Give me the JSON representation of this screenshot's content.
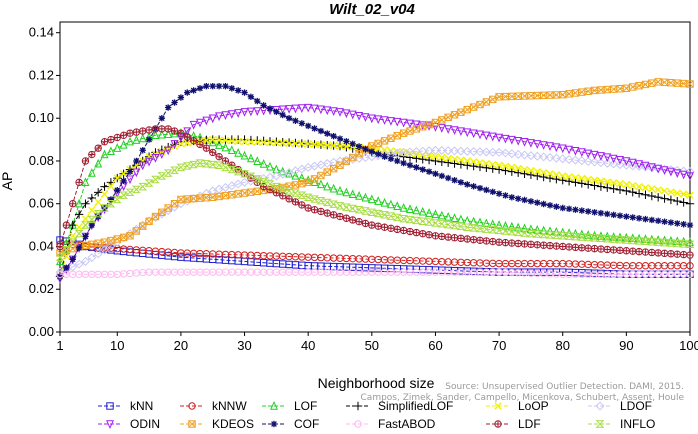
{
  "chart_data": {
    "type": "line",
    "title": "Wilt_02_v04",
    "xlabel": "Neighborhood size",
    "ylabel": "AP",
    "xlim": [
      1,
      100
    ],
    "ylim": [
      0.0,
      0.145
    ],
    "xticks": [
      "1",
      "10",
      "20",
      "30",
      "40",
      "50",
      "60",
      "70",
      "80",
      "90",
      "100"
    ],
    "yticks": [
      "0.00",
      "0.02",
      "0.04",
      "0.06",
      "0.08",
      "0.10",
      "0.12",
      "0.14"
    ],
    "watermark_line1": "Source: Unsupervised Outlier Detection. DAMI, 2015.",
    "watermark_line2": "Campos, Zimek, Sander, Campello, Micenkova, Schubert, Assent, Houle",
    "series": [
      {
        "name": "kNN",
        "color": "#1f1fd0",
        "marker": "square",
        "points": [
          [
            1,
            0.043
          ],
          [
            3,
            0.042
          ],
          [
            5,
            0.04
          ],
          [
            10,
            0.038
          ],
          [
            20,
            0.035
          ],
          [
            30,
            0.033
          ],
          [
            40,
            0.031
          ],
          [
            50,
            0.03
          ],
          [
            60,
            0.029
          ],
          [
            70,
            0.028
          ],
          [
            80,
            0.028
          ],
          [
            90,
            0.027
          ],
          [
            100,
            0.027
          ]
        ]
      },
      {
        "name": "kNNW",
        "color": "#d02020",
        "marker": "circle",
        "points": [
          [
            1,
            0.041
          ],
          [
            3,
            0.041
          ],
          [
            5,
            0.04
          ],
          [
            10,
            0.039
          ],
          [
            20,
            0.037
          ],
          [
            30,
            0.036
          ],
          [
            40,
            0.035
          ],
          [
            50,
            0.034
          ],
          [
            60,
            0.033
          ],
          [
            70,
            0.032
          ],
          [
            80,
            0.032
          ],
          [
            90,
            0.031
          ],
          [
            100,
            0.031
          ]
        ]
      },
      {
        "name": "LOF",
        "color": "#20d020",
        "marker": "triangle",
        "points": [
          [
            1,
            0.033
          ],
          [
            3,
            0.05
          ],
          [
            5,
            0.07
          ],
          [
            8,
            0.083
          ],
          [
            12,
            0.089
          ],
          [
            16,
            0.092
          ],
          [
            20,
            0.093
          ],
          [
            23,
            0.091
          ],
          [
            28,
            0.085
          ],
          [
            35,
            0.076
          ],
          [
            45,
            0.066
          ],
          [
            55,
            0.058
          ],
          [
            65,
            0.052
          ],
          [
            75,
            0.048
          ],
          [
            85,
            0.045
          ],
          [
            100,
            0.042
          ]
        ]
      },
      {
        "name": "SimplifiedLOF",
        "color": "#000000",
        "marker": "plus",
        "points": [
          [
            1,
            0.026
          ],
          [
            3,
            0.05
          ],
          [
            5,
            0.06
          ],
          [
            8,
            0.068
          ],
          [
            12,
            0.076
          ],
          [
            16,
            0.084
          ],
          [
            20,
            0.089
          ],
          [
            25,
            0.09
          ],
          [
            30,
            0.09
          ],
          [
            35,
            0.089
          ],
          [
            40,
            0.088
          ],
          [
            45,
            0.087
          ],
          [
            50,
            0.084
          ],
          [
            60,
            0.08
          ],
          [
            70,
            0.076
          ],
          [
            80,
            0.071
          ],
          [
            90,
            0.066
          ],
          [
            100,
            0.06
          ]
        ]
      },
      {
        "name": "LoOP",
        "color": "#f2f200",
        "marker": "x",
        "points": [
          [
            1,
            0.026
          ],
          [
            3,
            0.045
          ],
          [
            6,
            0.057
          ],
          [
            10,
            0.072
          ],
          [
            15,
            0.082
          ],
          [
            20,
            0.088
          ],
          [
            25,
            0.09
          ],
          [
            30,
            0.089
          ],
          [
            40,
            0.088
          ],
          [
            50,
            0.086
          ],
          [
            60,
            0.082
          ],
          [
            70,
            0.078
          ],
          [
            80,
            0.073
          ],
          [
            90,
            0.069
          ],
          [
            100,
            0.064
          ]
        ]
      },
      {
        "name": "LDOF",
        "color": "#c8c8f4",
        "marker": "diamond",
        "points": [
          [
            1,
            0.028
          ],
          [
            5,
            0.033
          ],
          [
            10,
            0.042
          ],
          [
            15,
            0.052
          ],
          [
            20,
            0.06
          ],
          [
            25,
            0.066
          ],
          [
            30,
            0.07
          ],
          [
            35,
            0.073
          ],
          [
            40,
            0.077
          ],
          [
            45,
            0.08
          ],
          [
            50,
            0.082
          ],
          [
            55,
            0.084
          ],
          [
            60,
            0.085
          ],
          [
            70,
            0.084
          ],
          [
            80,
            0.081
          ],
          [
            90,
            0.078
          ],
          [
            100,
            0.075
          ]
        ]
      },
      {
        "name": "ODIN",
        "color": "#a020f0",
        "marker": "tri-down",
        "points": [
          [
            1,
            0.025
          ],
          [
            3,
            0.034
          ],
          [
            6,
            0.05
          ],
          [
            10,
            0.065
          ],
          [
            14,
            0.078
          ],
          [
            18,
            0.085
          ],
          [
            22,
            0.097
          ],
          [
            26,
            0.101
          ],
          [
            30,
            0.103
          ],
          [
            35,
            0.104
          ],
          [
            40,
            0.105
          ],
          [
            45,
            0.103
          ],
          [
            50,
            0.1
          ],
          [
            60,
            0.096
          ],
          [
            70,
            0.091
          ],
          [
            80,
            0.086
          ],
          [
            90,
            0.08
          ],
          [
            100,
            0.073
          ]
        ]
      },
      {
        "name": "KDEOS",
        "color": "#f0a020",
        "marker": "square-x",
        "points": [
          [
            1,
            0.037
          ],
          [
            4,
            0.04
          ],
          [
            8,
            0.042
          ],
          [
            12,
            0.045
          ],
          [
            16,
            0.054
          ],
          [
            20,
            0.062
          ],
          [
            25,
            0.063
          ],
          [
            30,
            0.065
          ],
          [
            35,
            0.067
          ],
          [
            40,
            0.07
          ],
          [
            45,
            0.078
          ],
          [
            50,
            0.087
          ],
          [
            55,
            0.093
          ],
          [
            60,
            0.098
          ],
          [
            65,
            0.104
          ],
          [
            70,
            0.11
          ],
          [
            80,
            0.111
          ],
          [
            85,
            0.113
          ],
          [
            90,
            0.114
          ],
          [
            95,
            0.117
          ],
          [
            100,
            0.116
          ]
        ]
      },
      {
        "name": "COF",
        "color": "#10106e",
        "marker": "star",
        "points": [
          [
            1,
            0.026
          ],
          [
            3,
            0.034
          ],
          [
            6,
            0.05
          ],
          [
            9,
            0.062
          ],
          [
            12,
            0.075
          ],
          [
            15,
            0.09
          ],
          [
            18,
            0.105
          ],
          [
            21,
            0.112
          ],
          [
            24,
            0.115
          ],
          [
            27,
            0.115
          ],
          [
            30,
            0.112
          ],
          [
            33,
            0.106
          ],
          [
            37,
            0.1
          ],
          [
            42,
            0.094
          ],
          [
            47,
            0.088
          ],
          [
            52,
            0.082
          ],
          [
            58,
            0.076
          ],
          [
            65,
            0.069
          ],
          [
            72,
            0.063
          ],
          [
            80,
            0.058
          ],
          [
            90,
            0.054
          ],
          [
            100,
            0.05
          ]
        ]
      },
      {
        "name": "FastABOD",
        "color": "#ffb8f0",
        "marker": "circle",
        "points": [
          [
            1,
            0.027
          ],
          [
            5,
            0.027
          ],
          [
            10,
            0.027
          ],
          [
            15,
            0.028
          ],
          [
            20,
            0.028
          ],
          [
            30,
            0.028
          ],
          [
            40,
            0.028
          ],
          [
            50,
            0.028
          ],
          [
            60,
            0.028
          ],
          [
            70,
            0.028
          ],
          [
            80,
            0.027
          ],
          [
            90,
            0.027
          ],
          [
            100,
            0.027
          ]
        ]
      },
      {
        "name": "LDF",
        "color": "#a01e32",
        "marker": "circle-plus",
        "points": [
          [
            1,
            0.04
          ],
          [
            3,
            0.06
          ],
          [
            5,
            0.08
          ],
          [
            8,
            0.089
          ],
          [
            12,
            0.093
          ],
          [
            16,
            0.095
          ],
          [
            18,
            0.095
          ],
          [
            20,
            0.093
          ],
          [
            24,
            0.086
          ],
          [
            28,
            0.078
          ],
          [
            33,
            0.068
          ],
          [
            40,
            0.058
          ],
          [
            50,
            0.05
          ],
          [
            60,
            0.045
          ],
          [
            70,
            0.042
          ],
          [
            80,
            0.04
          ],
          [
            90,
            0.038
          ],
          [
            100,
            0.036
          ]
        ]
      },
      {
        "name": "INFLO",
        "color": "#a8dc40",
        "marker": "hourglass",
        "points": [
          [
            1,
            0.035
          ],
          [
            3,
            0.042
          ],
          [
            5,
            0.05
          ],
          [
            8,
            0.058
          ],
          [
            11,
            0.064
          ],
          [
            14,
            0.068
          ],
          [
            17,
            0.073
          ],
          [
            20,
            0.077
          ],
          [
            23,
            0.079
          ],
          [
            26,
            0.078
          ],
          [
            30,
            0.074
          ],
          [
            35,
            0.068
          ],
          [
            40,
            0.063
          ],
          [
            45,
            0.059
          ],
          [
            55,
            0.053
          ],
          [
            65,
            0.049
          ],
          [
            75,
            0.046
          ],
          [
            85,
            0.044
          ],
          [
            100,
            0.041
          ]
        ]
      }
    ],
    "legend_order": [
      "kNN",
      "kNNW",
      "LOF",
      "SimplifiedLOF",
      "LoOP",
      "LDOF",
      "ODIN",
      "KDEOS",
      "COF",
      "FastABOD",
      "LDF",
      "INFLO"
    ]
  }
}
